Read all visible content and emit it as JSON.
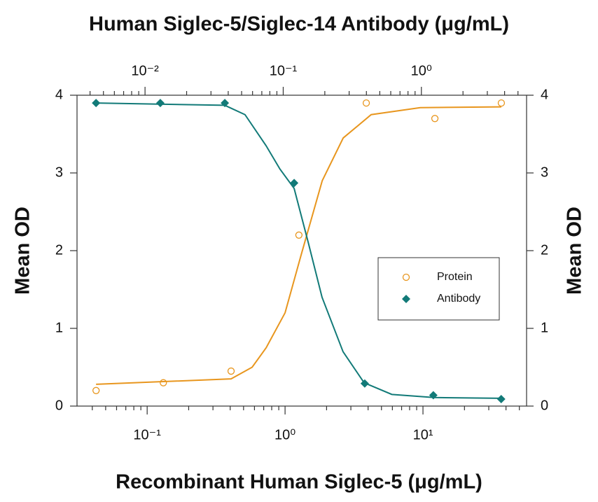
{
  "chart_data": {
    "type": "scatter",
    "title": "Human Siglec-5/Siglec-14 Antibody (μg/mL)",
    "xlabel": "Recombinant Human Siglec-5 (μg/mL)",
    "ylabel": "Mean OD",
    "y2label": "Mean OD",
    "xscale": "log",
    "x2scale": "log",
    "xlim": [
      0.031,
      56.4
    ],
    "x2lim": [
      0.00322,
      5.77
    ],
    "xticks": [
      {
        "value": 0.1,
        "label": "10⁻¹"
      },
      {
        "value": 1,
        "label": "10⁰"
      },
      {
        "value": 10,
        "label": "10¹"
      }
    ],
    "x2ticks": [
      {
        "value": 0.01,
        "label": "10⁻²"
      },
      {
        "value": 0.1,
        "label": "10⁻¹"
      },
      {
        "value": 1,
        "label": "10⁰"
      }
    ],
    "xminorticks": [
      0.04,
      0.05,
      0.06,
      0.07,
      0.08,
      0.09,
      0.2,
      0.3,
      0.4,
      0.5,
      0.6,
      0.7,
      0.8,
      0.9,
      2,
      3,
      4,
      5,
      6,
      7,
      8,
      9,
      20,
      30,
      40,
      50
    ],
    "x2minorticks": [
      0.004,
      0.005,
      0.006,
      0.007,
      0.008,
      0.009,
      0.02,
      0.03,
      0.04,
      0.05,
      0.06,
      0.07,
      0.08,
      0.09,
      0.2,
      0.3,
      0.4,
      0.5,
      0.6,
      0.7,
      0.8,
      0.9,
      2,
      3,
      4,
      5
    ],
    "ylim": [
      0,
      4
    ],
    "yticks": [
      0,
      1,
      2,
      3,
      4
    ],
    "y2lim": [
      0,
      4
    ],
    "y2ticks": [
      0,
      1,
      2,
      3,
      4
    ],
    "legend": "right",
    "series": [
      {
        "name": "Protein",
        "color": "#e8961e",
        "marker": "circle",
        "axis": "x",
        "x": [
          0.0426,
          0.131,
          0.406,
          1.26,
          3.88,
          12.2,
          37.0
        ],
        "values": [
          0.2,
          0.3,
          0.45,
          2.2,
          3.9,
          3.7,
          3.9
        ],
        "fit": {
          "x": [
            0.0426,
            0.406,
            0.577,
            0.729,
            1,
            1.31,
            1.86,
            2.64,
            4.21,
            9.55,
            37.0
          ],
          "values": [
            0.28,
            0.35,
            0.5,
            0.75,
            1.2,
            1.95,
            2.9,
            3.45,
            3.75,
            3.84,
            3.85
          ]
        }
      },
      {
        "name": "Antibody",
        "color": "#127a78",
        "marker": "diamond",
        "axis": "x2",
        "x": [
          0.00442,
          0.0129,
          0.0378,
          0.12,
          0.389,
          1.22,
          3.78
        ],
        "values": [
          3.9,
          3.9,
          3.9,
          2.87,
          0.29,
          0.14,
          0.09
        ],
        "fit": {
          "x": [
            0.00442,
            0.0378,
            0.0529,
            0.0752,
            0.0947,
            0.12,
            0.152,
            0.191,
            0.271,
            0.385,
            0.611,
            1.23,
            3.78
          ],
          "values": [
            3.9,
            3.87,
            3.75,
            3.35,
            3.05,
            2.8,
            2.1,
            1.4,
            0.7,
            0.3,
            0.15,
            0.11,
            0.1
          ]
        }
      }
    ]
  }
}
